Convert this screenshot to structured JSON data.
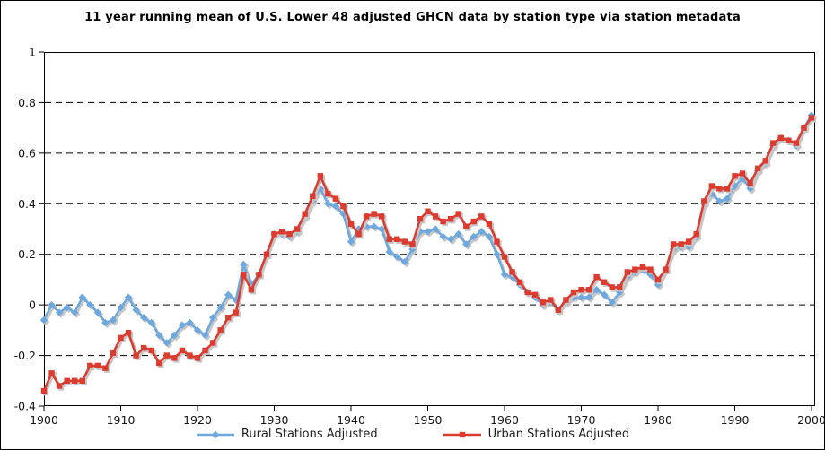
{
  "chart": {
    "title": "11 year running mean of U.S. Lower 48 adjusted GHCN data by station type via station metadata"
  },
  "legend": {
    "items": [
      {
        "label": "Rural Stations Adjusted"
      },
      {
        "label": "Urban Stations Adjusted"
      }
    ]
  },
  "chart_data": {
    "type": "line",
    "title": "11 year running mean of U.S. Lower 48 adjusted GHCN data by station type via station metadata",
    "xlabel": "",
    "ylabel": "",
    "xlim": [
      1900,
      2000
    ],
    "ylim": [
      -0.4,
      1
    ],
    "grid": "horizontal dashed",
    "grid_values": [
      0.8,
      0.6,
      0.4,
      0.2,
      0,
      -0.2
    ],
    "yticks": [
      1,
      0.8,
      0.6,
      0.4,
      0.2,
      0,
      -0.2,
      -0.4
    ],
    "ytick_labels": [
      "1",
      "0.8",
      "0.6",
      "0.4",
      "0.2",
      "0",
      "-0.2",
      "-0.4"
    ],
    "xticks": [
      1900,
      1910,
      1920,
      1930,
      1940,
      1950,
      1960,
      1970,
      1980,
      1990,
      2000
    ],
    "legend_position": "bottom",
    "shadow_color": "#c6c6c6",
    "years": [
      1900,
      1901,
      1902,
      1903,
      1904,
      1905,
      1906,
      1907,
      1908,
      1909,
      1910,
      1911,
      1912,
      1913,
      1914,
      1915,
      1916,
      1917,
      1918,
      1919,
      1920,
      1921,
      1922,
      1923,
      1924,
      1925,
      1926,
      1927,
      1928,
      1929,
      1930,
      1931,
      1932,
      1933,
      1934,
      1935,
      1936,
      1937,
      1938,
      1939,
      1940,
      1941,
      1942,
      1943,
      1944,
      1945,
      1946,
      1947,
      1948,
      1949,
      1950,
      1951,
      1952,
      1953,
      1954,
      1955,
      1956,
      1957,
      1958,
      1959,
      1960,
      1961,
      1962,
      1963,
      1964,
      1965,
      1966,
      1967,
      1968,
      1969,
      1970,
      1971,
      1972,
      1973,
      1974,
      1975,
      1976,
      1977,
      1978,
      1979,
      1980,
      1981,
      1982,
      1983,
      1984,
      1985,
      1986,
      1987,
      1988,
      1989,
      1990,
      1991,
      1992,
      1993,
      1994,
      1995,
      1996,
      1997,
      1998,
      1999,
      2000
    ],
    "series": [
      {
        "name": "Rural Stations Adjusted",
        "color": "#6FA8DC",
        "marker": "diamond",
        "values": [
          -0.06,
          0.0,
          -0.03,
          -0.01,
          -0.03,
          0.03,
          0.0,
          -0.03,
          -0.07,
          -0.06,
          -0.01,
          0.03,
          -0.02,
          -0.05,
          -0.07,
          -0.12,
          -0.15,
          -0.12,
          -0.08,
          -0.07,
          -0.1,
          -0.12,
          -0.05,
          -0.01,
          0.04,
          0.02,
          0.16,
          0.08,
          0.12,
          0.2,
          0.28,
          0.28,
          0.27,
          0.29,
          0.35,
          0.41,
          0.46,
          0.4,
          0.39,
          0.36,
          0.25,
          0.3,
          0.31,
          0.31,
          0.3,
          0.21,
          0.19,
          0.17,
          0.22,
          0.29,
          0.29,
          0.3,
          0.27,
          0.26,
          0.28,
          0.24,
          0.27,
          0.29,
          0.27,
          0.2,
          0.12,
          0.11,
          0.08,
          0.05,
          0.03,
          0.0,
          0.01,
          -0.02,
          0.01,
          0.03,
          0.03,
          0.03,
          0.06,
          0.04,
          0.01,
          0.05,
          0.11,
          0.13,
          0.14,
          0.12,
          0.08,
          0.14,
          0.22,
          0.23,
          0.23,
          0.27,
          0.4,
          0.44,
          0.41,
          0.42,
          0.47,
          0.5,
          0.46,
          0.53,
          0.56,
          0.63,
          0.66,
          0.65,
          0.63,
          0.7,
          0.75
        ]
      },
      {
        "name": "Urban Stations Adjusted",
        "color": "#DC3B2F",
        "marker": "square",
        "values": [
          -0.34,
          -0.27,
          -0.32,
          -0.3,
          -0.3,
          -0.3,
          -0.24,
          -0.24,
          -0.25,
          -0.19,
          -0.13,
          -0.11,
          -0.2,
          -0.17,
          -0.18,
          -0.23,
          -0.2,
          -0.21,
          -0.18,
          -0.2,
          -0.21,
          -0.18,
          -0.15,
          -0.1,
          -0.05,
          -0.03,
          0.12,
          0.06,
          0.12,
          0.2,
          0.28,
          0.29,
          0.28,
          0.3,
          0.36,
          0.43,
          0.51,
          0.44,
          0.42,
          0.39,
          0.32,
          0.28,
          0.35,
          0.36,
          0.35,
          0.26,
          0.26,
          0.25,
          0.24,
          0.34,
          0.37,
          0.35,
          0.33,
          0.34,
          0.36,
          0.31,
          0.33,
          0.35,
          0.32,
          0.25,
          0.19,
          0.13,
          0.09,
          0.05,
          0.04,
          0.01,
          0.02,
          -0.02,
          0.02,
          0.05,
          0.06,
          0.06,
          0.11,
          0.09,
          0.07,
          0.07,
          0.13,
          0.14,
          0.15,
          0.14,
          0.1,
          0.14,
          0.24,
          0.24,
          0.25,
          0.28,
          0.41,
          0.47,
          0.46,
          0.46,
          0.51,
          0.52,
          0.48,
          0.54,
          0.57,
          0.64,
          0.66,
          0.65,
          0.64,
          0.7,
          0.74
        ]
      }
    ]
  }
}
